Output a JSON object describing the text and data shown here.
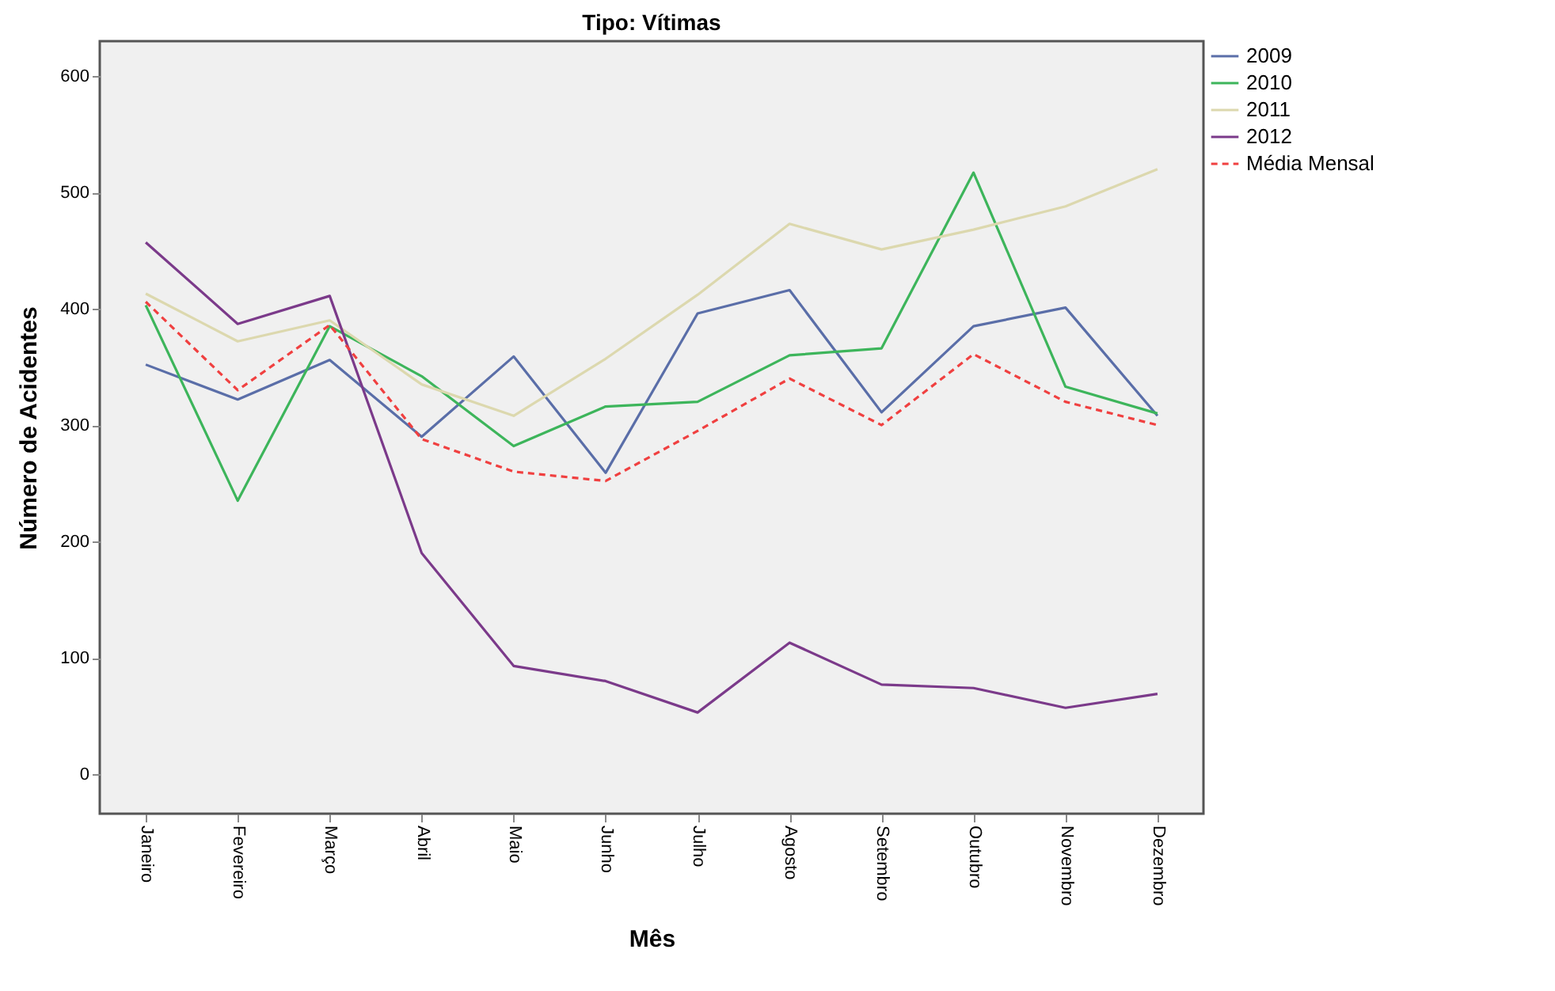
{
  "chart_data": {
    "type": "line",
    "title": "Tipo: Vítimas",
    "xlabel": "Mês",
    "ylabel": "Número de Acidentes",
    "categories": [
      "Janeiro",
      "Fevereiro",
      "Março",
      "Abril",
      "Maio",
      "Junho",
      "Julho",
      "Agosto",
      "Setembro",
      "Outubro",
      "Novembro",
      "Dezembro"
    ],
    "series": [
      {
        "name": "2009",
        "color": "#5a6ea8",
        "values": [
          352,
          322,
          356,
          290,
          359,
          259,
          396,
          416,
          311,
          385,
          401,
          308
        ]
      },
      {
        "name": "2010",
        "color": "#3db55b",
        "values": [
          403,
          235,
          385,
          342,
          282,
          316,
          320,
          360,
          366,
          517,
          333,
          310
        ]
      },
      {
        "name": "2011",
        "color": "#dcd8ae",
        "values": [
          413,
          372,
          390,
          335,
          308,
          357,
          412,
          473,
          451,
          468,
          488,
          520
        ]
      },
      {
        "name": "2012",
        "color": "#7b3a8a",
        "values": [
          457,
          387,
          411,
          190,
          93,
          80,
          53,
          113,
          77,
          74,
          57,
          69
        ]
      },
      {
        "name": "Média Mensal",
        "color": "#f04040",
        "line_style": "dashed",
        "values": [
          406,
          330,
          386,
          288,
          260,
          252,
          295,
          340,
          300,
          361,
          320,
          300
        ]
      }
    ],
    "ylim": [
      -34,
      630
    ],
    "yticks": [
      0,
      100,
      200,
      300,
      400,
      500,
      600
    ],
    "grid": false,
    "legend": "top right",
    "marker": "none",
    "line_style": "solid"
  }
}
